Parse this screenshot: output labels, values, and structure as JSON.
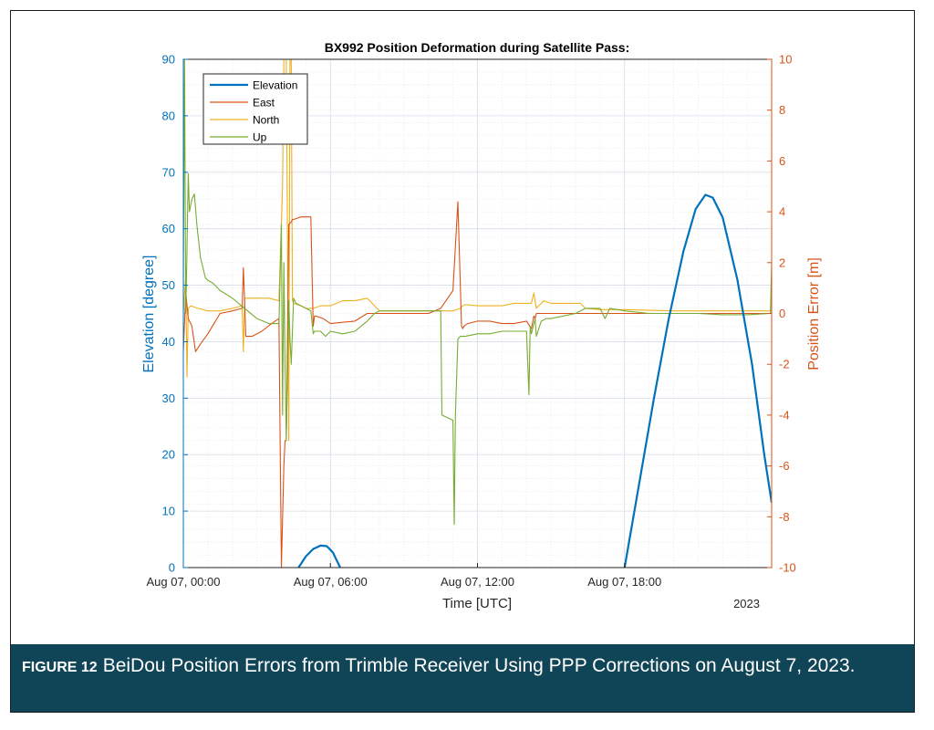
{
  "caption": {
    "label": "FIGURE 12",
    "text": "BeiDou Position Errors from Trimble Receiver Using PPP Corrections on August 7, 2023."
  },
  "colors": {
    "elevation": "#0072BD",
    "east": "#D95319",
    "north": "#EDB120",
    "up": "#77AC30",
    "caption_bg": "#104457"
  },
  "chart_data": {
    "type": "line",
    "title": "BX992 Position Deformation during Satellite Pass:",
    "xlabel": "Time [UTC]",
    "ylabel_left": "Elevation [degree]",
    "ylabel_right": "Position Error [m]",
    "x_unit": "hours since Aug 07, 00:00 UTC",
    "xlim": [
      0,
      24
    ],
    "x_ticks": [
      0,
      6,
      12,
      18
    ],
    "x_tick_labels": [
      "Aug 07, 00:00",
      "Aug 07, 06:00",
      "Aug 07, 12:00",
      "Aug 07, 18:00"
    ],
    "x_secondary_label": "2023",
    "ylim_left": [
      0,
      90
    ],
    "y_ticks_left": [
      0,
      10,
      20,
      30,
      40,
      50,
      60,
      70,
      80,
      90
    ],
    "ylim_right": [
      -10,
      10
    ],
    "y_ticks_right": [
      -10,
      -8,
      -6,
      -4,
      -2,
      0,
      2,
      4,
      6,
      8,
      10
    ],
    "grid": true,
    "minor_grid": true,
    "legend_position": "top-left",
    "series": [
      {
        "name": "Elevation",
        "axis": "left",
        "x": [
          4.7,
          5.0,
          5.3,
          5.6,
          5.85,
          6.1,
          6.4,
          18.0,
          18.6,
          19.2,
          19.8,
          20.4,
          20.9,
          21.3,
          21.6,
          22.0,
          22.6,
          23.2,
          23.7,
          24.0
        ],
        "y": [
          0,
          2.0,
          3.3,
          3.9,
          3.8,
          2.7,
          0,
          0,
          15,
          30,
          44,
          56,
          63.5,
          66,
          65.5,
          62,
          51,
          36,
          20,
          11.5
        ]
      },
      {
        "name": "East",
        "axis": "right",
        "x": [
          0,
          0.1,
          0.2,
          0.35,
          0.5,
          0.7,
          1.0,
          1.5,
          2.0,
          2.4,
          2.45,
          2.5,
          2.55,
          2.8,
          3.2,
          3.6,
          3.9,
          4.0,
          4.1,
          4.15,
          4.2,
          4.3,
          4.4,
          4.45,
          4.5,
          4.8,
          5.0,
          5.2,
          5.3,
          5.35,
          5.4,
          5.7,
          6.0,
          6.5,
          7.0,
          7.5,
          8.0,
          9.0,
          10.0,
          10.5,
          11.0,
          11.2,
          11.35,
          11.4,
          11.45,
          11.6,
          12.0,
          12.5,
          13.0,
          13.5,
          14.0,
          14.2,
          14.3,
          14.35,
          14.4,
          15.0,
          16.0,
          17.0,
          18.0,
          19.0,
          20.0,
          21.0,
          22.0,
          23.0,
          24.0
        ],
        "y": [
          -1.5,
          0.8,
          -0.2,
          -0.5,
          -1.5,
          -1.2,
          -0.8,
          0,
          0.1,
          0.2,
          1.8,
          0.5,
          -0.9,
          -0.9,
          -0.7,
          -0.4,
          -0.2,
          -10,
          -6,
          -5,
          -5,
          3.5,
          3.6,
          3.7,
          3.7,
          3.8,
          3.8,
          3.8,
          -0.5,
          -0.1,
          -0.1,
          -0.2,
          -0.4,
          -0.35,
          -0.3,
          0,
          0,
          0,
          0,
          0.2,
          0.9,
          4.4,
          -0.5,
          -0.6,
          -0.5,
          -0.4,
          -0.3,
          -0.3,
          -0.4,
          -0.4,
          -0.3,
          -0.6,
          -0.1,
          -0.2,
          0,
          0,
          0,
          0,
          0,
          0,
          0,
          0,
          0,
          0,
          0
        ]
      },
      {
        "name": "North",
        "axis": "right",
        "x": [
          0,
          0.1,
          0.15,
          0.2,
          0.3,
          0.6,
          1.0,
          1.5,
          2.0,
          2.4,
          2.45,
          2.5,
          2.6,
          3.0,
          3.5,
          3.9,
          4.05,
          4.1,
          4.2,
          4.3,
          4.35,
          4.4,
          4.45,
          4.5,
          4.8,
          5.0,
          5.3,
          5.6,
          6.0,
          6.5,
          7.0,
          7.5,
          8.0,
          9.0,
          10.0,
          11.0,
          11.3,
          11.4,
          11.5,
          12.0,
          13.0,
          13.5,
          14.2,
          14.3,
          14.4,
          14.6,
          14.7,
          15.0,
          16.0,
          16.2,
          16.4,
          17.0,
          18.0,
          20.0,
          22.0,
          24.0
        ],
        "y": [
          0.1,
          1.5,
          -2.5,
          0.2,
          0.3,
          0.2,
          0.1,
          0.1,
          0.2,
          0.3,
          -1.5,
          0.6,
          0.6,
          0.6,
          0.6,
          0.5,
          5,
          10,
          10,
          -5,
          10,
          10,
          0.5,
          0.4,
          0.3,
          0.2,
          0.2,
          0.3,
          0.3,
          0.5,
          0.5,
          0.6,
          0.1,
          0.1,
          0.1,
          0.1,
          0.2,
          0.3,
          0.35,
          0.3,
          0.3,
          0.4,
          0.4,
          0.8,
          0.2,
          0.4,
          0.5,
          0.4,
          0.4,
          0.4,
          0.2,
          0.15,
          0.15,
          0.1,
          0.1,
          0.1
        ]
      },
      {
        "name": "Up",
        "axis": "right",
        "x": [
          0,
          0.05,
          0.1,
          0.15,
          0.2,
          0.25,
          0.35,
          0.45,
          0.55,
          0.7,
          0.9,
          1.0,
          1.2,
          1.5,
          2.0,
          2.5,
          3.0,
          3.5,
          3.9,
          4.0,
          4.05,
          4.1,
          4.15,
          4.2,
          4.3,
          4.35,
          4.4,
          4.5,
          4.6,
          4.8,
          5.0,
          5.2,
          5.3,
          5.35,
          5.6,
          5.8,
          6.0,
          6.5,
          7.0,
          7.5,
          7.8,
          8.0,
          9.0,
          10.0,
          10.5,
          10.55,
          11.0,
          11.05,
          11.1,
          11.2,
          11.3,
          11.4,
          11.5,
          12.0,
          12.5,
          13.0,
          13.5,
          14.0,
          14.1,
          14.15,
          14.2,
          14.35,
          14.4,
          14.6,
          14.8,
          15.0,
          15.5,
          16.0,
          16.2,
          16.4,
          17.0,
          17.2,
          17.4,
          18.0,
          19.0,
          20.0,
          21.0,
          22.0,
          23.0,
          23.95,
          24.0
        ],
        "y": [
          1,
          10,
          0,
          2.5,
          5.5,
          4.0,
          4.5,
          4.7,
          3.5,
          2.2,
          1.4,
          1.3,
          1.2,
          0.9,
          0.6,
          0.2,
          -0.2,
          -0.4,
          -0.4,
          3.5,
          -4,
          2,
          -2.0,
          -5,
          0.5,
          -1,
          -2,
          0.6,
          0.4,
          0.3,
          0.2,
          0.1,
          -0.8,
          -0.7,
          -0.7,
          -0.9,
          -0.7,
          -0.8,
          -0.7,
          -0.3,
          0.0,
          0.1,
          0.1,
          0.1,
          0.1,
          -4.0,
          -4.2,
          -8.3,
          -4,
          -1.0,
          -0.9,
          -0.9,
          -0.9,
          -0.8,
          -0.8,
          -0.7,
          -0.7,
          -0.7,
          -3.2,
          -0.5,
          -0.8,
          -0.2,
          -0.9,
          -0.3,
          -0.2,
          -0.2,
          -0.1,
          0,
          0.1,
          0.2,
          0.2,
          -0.2,
          0.2,
          0.1,
          0,
          0,
          0,
          -0.05,
          -0.05,
          0,
          2
        ]
      }
    ]
  }
}
